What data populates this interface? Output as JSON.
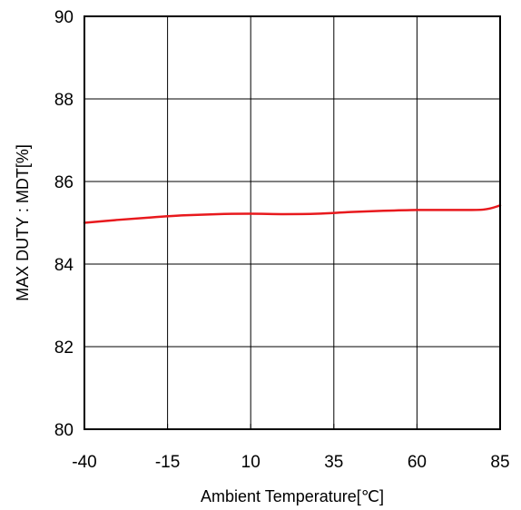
{
  "chart_data": {
    "type": "line",
    "title": "",
    "xlabel": "Ambient Temperature[℃]",
    "ylabel": "MAX DUTY : MDT[%]",
    "xlim": [
      -40,
      85
    ],
    "ylim": [
      80,
      90
    ],
    "xticks": [
      -40,
      -15,
      10,
      35,
      60,
      85
    ],
    "yticks": [
      80,
      82,
      84,
      86,
      88,
      90
    ],
    "grid": true,
    "legend": "none",
    "colors": {
      "series": "#e8191d",
      "grid": "#000000",
      "frame": "#000000"
    },
    "series": [
      {
        "x": [
          -40,
          -30,
          -20,
          -10,
          0,
          10,
          20,
          30,
          40,
          50,
          60,
          70,
          80,
          85
        ],
        "y": [
          85.0,
          85.07,
          85.13,
          85.18,
          85.21,
          85.22,
          85.21,
          85.22,
          85.26,
          85.29,
          85.31,
          85.31,
          85.32,
          85.42
        ]
      }
    ]
  }
}
